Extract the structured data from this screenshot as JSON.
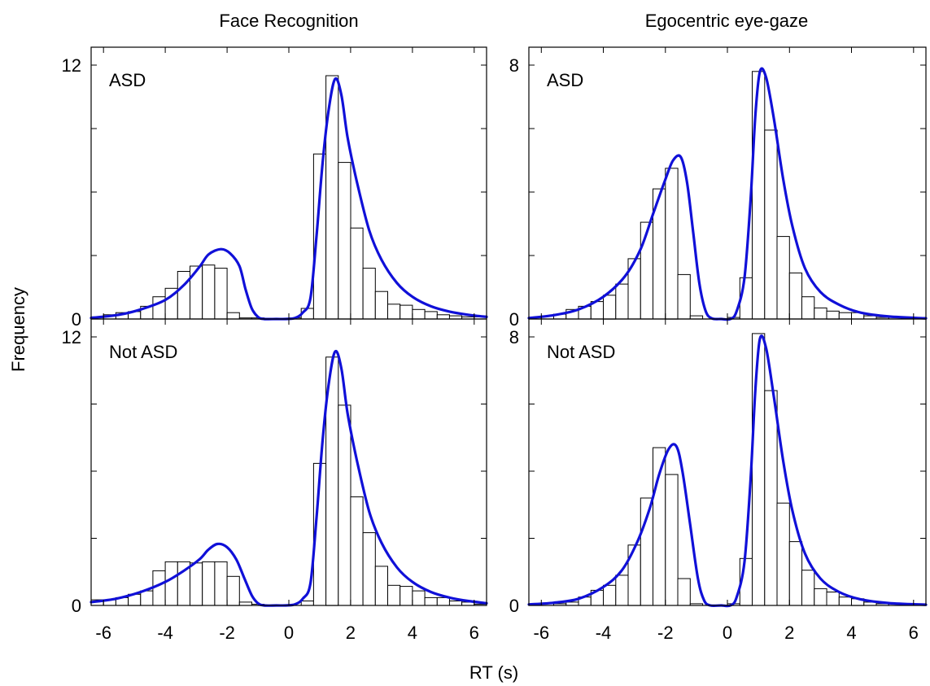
{
  "figure": {
    "xlabel": "RT (s)",
    "ylabel": "Frequency"
  },
  "chart_data": [
    {
      "type": "bar",
      "column_title": "Face Recognition",
      "label": "ASD",
      "xlim": [
        -6.4,
        6.4
      ],
      "ylim": [
        0,
        12
      ],
      "yticks": [
        0,
        12
      ],
      "xticks": [
        -6,
        -4,
        -2,
        0,
        2,
        4,
        6
      ],
      "bin_width": 0.4,
      "bins": [
        [
          -6.2,
          0.1
        ],
        [
          -5.8,
          0.2
        ],
        [
          -5.4,
          0.3
        ],
        [
          -5.0,
          0.35
        ],
        [
          -4.6,
          0.6
        ],
        [
          -4.2,
          1.05
        ],
        [
          -3.8,
          1.45
        ],
        [
          -3.4,
          2.25
        ],
        [
          -3.0,
          2.5
        ],
        [
          -2.6,
          2.55
        ],
        [
          -2.2,
          2.4
        ],
        [
          -1.8,
          0.3
        ],
        [
          -1.4,
          0.05
        ],
        [
          -1.0,
          0.05
        ],
        [
          -0.6,
          0
        ],
        [
          -0.2,
          0
        ],
        [
          0.2,
          0.05
        ],
        [
          0.6,
          0.5
        ],
        [
          1.0,
          7.8
        ],
        [
          1.4,
          11.5
        ],
        [
          1.8,
          7.4
        ],
        [
          2.2,
          4.3
        ],
        [
          2.6,
          2.4
        ],
        [
          3.0,
          1.3
        ],
        [
          3.4,
          0.7
        ],
        [
          3.8,
          0.65
        ],
        [
          4.2,
          0.45
        ],
        [
          4.6,
          0.35
        ],
        [
          5.0,
          0.2
        ],
        [
          5.4,
          0.15
        ],
        [
          5.8,
          0.1
        ],
        [
          6.2,
          0.1
        ]
      ],
      "density": [
        [
          -6.4,
          0.05
        ],
        [
          -5.5,
          0.2
        ],
        [
          -4.8,
          0.45
        ],
        [
          -4.0,
          0.9
        ],
        [
          -3.4,
          1.6
        ],
        [
          -2.9,
          2.45
        ],
        [
          -2.6,
          3.05
        ],
        [
          -2.2,
          3.3
        ],
        [
          -1.9,
          3.1
        ],
        [
          -1.6,
          2.5
        ],
        [
          -1.4,
          1.4
        ],
        [
          -1.2,
          0.5
        ],
        [
          -1.0,
          0.1
        ],
        [
          -0.8,
          0.0
        ],
        [
          -0.4,
          0.0
        ],
        [
          -0.1,
          0.0
        ],
        [
          0.2,
          0.05
        ],
        [
          0.45,
          0.3
        ],
        [
          0.7,
          1.0
        ],
        [
          0.9,
          4.0
        ],
        [
          1.1,
          7.5
        ],
        [
          1.3,
          10.0
        ],
        [
          1.5,
          11.35
        ],
        [
          1.7,
          10.6
        ],
        [
          1.9,
          8.6
        ],
        [
          2.2,
          6.5
        ],
        [
          2.6,
          4.2
        ],
        [
          3.0,
          2.8
        ],
        [
          3.5,
          1.7
        ],
        [
          4.0,
          1.05
        ],
        [
          4.6,
          0.6
        ],
        [
          5.2,
          0.35
        ],
        [
          5.8,
          0.2
        ],
        [
          6.4,
          0.1
        ]
      ]
    },
    {
      "type": "bar",
      "column_title": "Egocentric eye-gaze",
      "label": "ASD",
      "xlim": [
        -6.4,
        6.4
      ],
      "ylim": [
        0,
        8
      ],
      "yticks": [
        0,
        8
      ],
      "xticks": [
        -6,
        -4,
        -2,
        0,
        2,
        4,
        6
      ],
      "bin_width": 0.4,
      "bins": [
        [
          -6.2,
          0.05
        ],
        [
          -5.8,
          0.1
        ],
        [
          -5.4,
          0.15
        ],
        [
          -5.0,
          0.3
        ],
        [
          -4.6,
          0.4
        ],
        [
          -4.2,
          0.55
        ],
        [
          -3.8,
          0.75
        ],
        [
          -3.4,
          1.1
        ],
        [
          -3.0,
          1.9
        ],
        [
          -2.6,
          3.05
        ],
        [
          -2.2,
          4.1
        ],
        [
          -1.8,
          4.75
        ],
        [
          -1.4,
          1.4
        ],
        [
          -1.0,
          0.1
        ],
        [
          -0.6,
          0
        ],
        [
          -0.2,
          0
        ],
        [
          0.2,
          0.05
        ],
        [
          0.6,
          1.3
        ],
        [
          1.0,
          7.8
        ],
        [
          1.4,
          5.95
        ],
        [
          1.8,
          2.6
        ],
        [
          2.2,
          1.45
        ],
        [
          2.6,
          0.7
        ],
        [
          3.0,
          0.35
        ],
        [
          3.4,
          0.25
        ],
        [
          3.8,
          0.2
        ],
        [
          4.2,
          0.2
        ],
        [
          4.6,
          0.1
        ],
        [
          5.0,
          0.05
        ],
        [
          5.4,
          0.05
        ],
        [
          5.8,
          0.05
        ],
        [
          6.2,
          0.05
        ]
      ],
      "density": [
        [
          -6.4,
          0.03
        ],
        [
          -5.6,
          0.12
        ],
        [
          -4.8,
          0.3
        ],
        [
          -4.0,
          0.7
        ],
        [
          -3.3,
          1.35
        ],
        [
          -2.8,
          2.2
        ],
        [
          -2.4,
          3.3
        ],
        [
          -2.0,
          4.4
        ],
        [
          -1.75,
          5.0
        ],
        [
          -1.5,
          5.1
        ],
        [
          -1.3,
          4.3
        ],
        [
          -1.1,
          2.7
        ],
        [
          -0.9,
          1.1
        ],
        [
          -0.7,
          0.25
        ],
        [
          -0.5,
          0.02
        ],
        [
          -0.2,
          0.0
        ],
        [
          0.1,
          0.0
        ],
        [
          0.3,
          0.25
        ],
        [
          0.55,
          1.3
        ],
        [
          0.75,
          3.8
        ],
        [
          0.9,
          6.4
        ],
        [
          1.05,
          7.8
        ],
        [
          1.25,
          7.6
        ],
        [
          1.5,
          6.3
        ],
        [
          1.8,
          4.4
        ],
        [
          2.1,
          2.9
        ],
        [
          2.5,
          1.6
        ],
        [
          3.0,
          0.85
        ],
        [
          3.6,
          0.45
        ],
        [
          4.3,
          0.2
        ],
        [
          5.2,
          0.08
        ],
        [
          6.4,
          0.02
        ]
      ]
    },
    {
      "type": "bar",
      "column_title": "Face Recognition",
      "label": "Not ASD",
      "xlim": [
        -6.4,
        6.4
      ],
      "ylim": [
        0,
        12
      ],
      "yticks": [
        0,
        12
      ],
      "xticks": [
        -6,
        -4,
        -2,
        0,
        2,
        4,
        6
      ],
      "bin_width": 0.4,
      "bins": [
        [
          -6.2,
          0.25
        ],
        [
          -5.8,
          0.25
        ],
        [
          -5.4,
          0.35
        ],
        [
          -5.0,
          0.5
        ],
        [
          -4.6,
          0.65
        ],
        [
          -4.2,
          1.55
        ],
        [
          -3.8,
          1.95
        ],
        [
          -3.4,
          1.95
        ],
        [
          -3.0,
          1.9
        ],
        [
          -2.6,
          1.95
        ],
        [
          -2.2,
          1.95
        ],
        [
          -1.8,
          1.3
        ],
        [
          -1.4,
          0.15
        ],
        [
          -1.0,
          0.05
        ],
        [
          -0.6,
          0
        ],
        [
          -0.2,
          0
        ],
        [
          0.2,
          0
        ],
        [
          0.6,
          0.2
        ],
        [
          1.0,
          6.35
        ],
        [
          1.4,
          11.1
        ],
        [
          1.8,
          8.95
        ],
        [
          2.2,
          4.85
        ],
        [
          2.6,
          3.25
        ],
        [
          3.0,
          1.75
        ],
        [
          3.4,
          0.9
        ],
        [
          3.8,
          0.85
        ],
        [
          4.2,
          0.65
        ],
        [
          4.6,
          0.35
        ],
        [
          5.0,
          0.35
        ],
        [
          5.4,
          0.2
        ],
        [
          5.8,
          0.15
        ],
        [
          6.2,
          0.05
        ]
      ],
      "density": [
        [
          -6.4,
          0.15
        ],
        [
          -5.6,
          0.3
        ],
        [
          -4.8,
          0.6
        ],
        [
          -4.0,
          1.05
        ],
        [
          -3.4,
          1.55
        ],
        [
          -2.9,
          2.05
        ],
        [
          -2.6,
          2.5
        ],
        [
          -2.3,
          2.75
        ],
        [
          -2.0,
          2.6
        ],
        [
          -1.7,
          2.05
        ],
        [
          -1.45,
          1.25
        ],
        [
          -1.2,
          0.45
        ],
        [
          -1.0,
          0.1
        ],
        [
          -0.8,
          0.0
        ],
        [
          -0.4,
          0.0
        ],
        [
          -0.1,
          0.0
        ],
        [
          0.2,
          0.05
        ],
        [
          0.45,
          0.3
        ],
        [
          0.7,
          1.0
        ],
        [
          0.9,
          4.0
        ],
        [
          1.1,
          7.5
        ],
        [
          1.3,
          10.0
        ],
        [
          1.5,
          11.35
        ],
        [
          1.7,
          10.6
        ],
        [
          1.9,
          8.6
        ],
        [
          2.2,
          6.5
        ],
        [
          2.6,
          4.2
        ],
        [
          3.0,
          2.8
        ],
        [
          3.5,
          1.7
        ],
        [
          4.0,
          1.05
        ],
        [
          4.6,
          0.6
        ],
        [
          5.2,
          0.35
        ],
        [
          5.8,
          0.2
        ],
        [
          6.4,
          0.1
        ]
      ]
    },
    {
      "type": "bar",
      "column_title": "Egocentric eye-gaze",
      "label": "Not ASD",
      "xlim": [
        -6.4,
        6.4
      ],
      "ylim": [
        0,
        8
      ],
      "yticks": [
        0,
        8
      ],
      "xticks": [
        -6,
        -4,
        -2,
        0,
        2,
        4,
        6
      ],
      "bin_width": 0.4,
      "bins": [
        [
          -6.2,
          0.05
        ],
        [
          -5.8,
          0.05
        ],
        [
          -5.4,
          0.05
        ],
        [
          -5.0,
          0.1
        ],
        [
          -4.6,
          0.25
        ],
        [
          -4.2,
          0.45
        ],
        [
          -3.8,
          0.6
        ],
        [
          -3.4,
          0.9
        ],
        [
          -3.0,
          1.8
        ],
        [
          -2.6,
          3.2
        ],
        [
          -2.2,
          4.7
        ],
        [
          -1.8,
          3.9
        ],
        [
          -1.4,
          0.8
        ],
        [
          -1.0,
          0.05
        ],
        [
          -0.6,
          0
        ],
        [
          -0.2,
          0
        ],
        [
          0.2,
          0.05
        ],
        [
          0.6,
          1.4
        ],
        [
          1.0,
          8.1
        ],
        [
          1.4,
          6.4
        ],
        [
          1.8,
          3.05
        ],
        [
          2.2,
          1.9
        ],
        [
          2.6,
          1.05
        ],
        [
          3.0,
          0.5
        ],
        [
          3.4,
          0.4
        ],
        [
          3.8,
          0.25
        ],
        [
          4.2,
          0.2
        ],
        [
          4.6,
          0.1
        ],
        [
          5.0,
          0.05
        ],
        [
          5.4,
          0.05
        ],
        [
          5.8,
          0.05
        ],
        [
          6.2,
          0.05
        ]
      ],
      "density": [
        [
          -6.4,
          0.03
        ],
        [
          -5.6,
          0.08
        ],
        [
          -4.8,
          0.2
        ],
        [
          -4.0,
          0.55
        ],
        [
          -3.4,
          1.05
        ],
        [
          -2.9,
          1.9
        ],
        [
          -2.5,
          2.9
        ],
        [
          -2.2,
          3.9
        ],
        [
          -1.9,
          4.65
        ],
        [
          -1.65,
          4.75
        ],
        [
          -1.45,
          4.0
        ],
        [
          -1.2,
          2.4
        ],
        [
          -0.95,
          0.8
        ],
        [
          -0.75,
          0.15
        ],
        [
          -0.55,
          0.0
        ],
        [
          -0.2,
          0.0
        ],
        [
          0.1,
          0.0
        ],
        [
          0.3,
          0.25
        ],
        [
          0.55,
          1.3
        ],
        [
          0.75,
          3.8
        ],
        [
          0.9,
          6.4
        ],
        [
          1.05,
          7.95
        ],
        [
          1.25,
          7.65
        ],
        [
          1.5,
          6.2
        ],
        [
          1.8,
          4.3
        ],
        [
          2.1,
          2.8
        ],
        [
          2.5,
          1.55
        ],
        [
          3.0,
          0.8
        ],
        [
          3.6,
          0.4
        ],
        [
          4.3,
          0.18
        ],
        [
          5.2,
          0.07
        ],
        [
          6.4,
          0.02
        ]
      ]
    }
  ]
}
